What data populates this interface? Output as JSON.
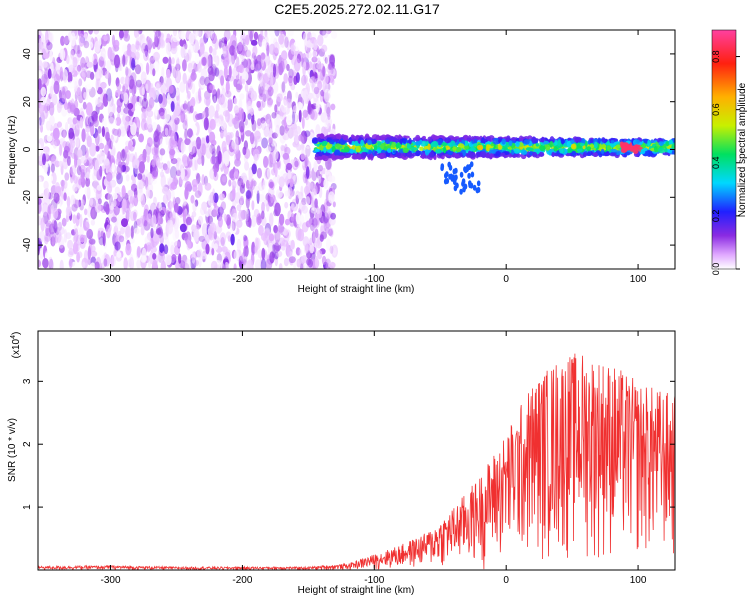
{
  "title": "C2E5.2025.272.02.11.G17",
  "chart_data": [
    {
      "type": "heatmap",
      "xlabel": "Height of straight line (km)",
      "ylabel": "Frequency (Hz)",
      "xlim": [
        -355,
        128
      ],
      "ylim": [
        -50,
        50
      ],
      "xticks": [
        -300,
        -200,
        -100,
        0,
        100
      ],
      "yticks": [
        -40,
        -20,
        0,
        20,
        40
      ],
      "colorbar": {
        "label": "Normalized spectral amplitude",
        "range": [
          0,
          0.9
        ],
        "ticks": [
          0.0,
          0.2,
          0.4,
          0.6,
          0.8
        ],
        "tick_labels": [
          "0.0",
          "0.2",
          "0.4",
          "0.6",
          "0.8"
        ],
        "placement": "right"
      },
      "noise_region_x": [
        -355,
        -130
      ],
      "noise_amplitude": 0.12,
      "signal_band": {
        "x_start": -145,
        "x_end": 128,
        "center_freq": 1,
        "half_width_hz": 4,
        "peak_amplitude": 0.85,
        "peak_x": 95
      },
      "grid": false
    },
    {
      "type": "line",
      "xlabel": "Height of straight line (km)",
      "ylabel": "SNR (10 * v/v)",
      "yscale_label": "(x10",
      "yscale_exp": "4",
      "yscale_suffix": ")",
      "xlim": [
        -355,
        128
      ],
      "ylim": [
        0,
        3.8
      ],
      "xticks": [
        -300,
        -200,
        -100,
        0,
        100
      ],
      "yticks": [
        1,
        2,
        3
      ],
      "color": "#f03030",
      "envelope": [
        [
          -355,
          0.06
        ],
        [
          -300,
          0.07
        ],
        [
          -250,
          0.05
        ],
        [
          -200,
          0.05
        ],
        [
          -150,
          0.05
        ],
        [
          -120,
          0.1
        ],
        [
          -100,
          0.25
        ],
        [
          -80,
          0.4
        ],
        [
          -60,
          0.6
        ],
        [
          -40,
          1.0
        ],
        [
          -20,
          1.5
        ],
        [
          0,
          2.2
        ],
        [
          20,
          3.0
        ],
        [
          40,
          3.4
        ],
        [
          60,
          3.5
        ],
        [
          80,
          3.3
        ],
        [
          100,
          3.0
        ],
        [
          128,
          2.8
        ]
      ],
      "grid": false
    }
  ]
}
